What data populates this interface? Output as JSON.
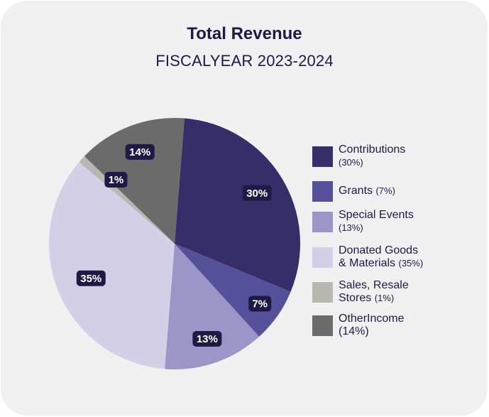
{
  "header": {
    "title": "Total Revenue",
    "subtitle": "FISCALYEAR 2023-2024"
  },
  "chart_data": {
    "type": "pie",
    "title": "Total Revenue",
    "subtitle": "FISCALYEAR 2023-2024",
    "legend_position": "right",
    "slices": [
      {
        "name": "Contributions",
        "value": 30,
        "label": "30%",
        "legend_line1": "Contributions",
        "legend_line2": "(30%)",
        "color": "#362e69"
      },
      {
        "name": "Grants",
        "value": 7,
        "label": "7%",
        "legend_line1": "Grants",
        "legend_line2": "(7%)",
        "color": "#55509a"
      },
      {
        "name": "Special Events",
        "value": 13,
        "label": "13%",
        "legend_line1": "Special Events",
        "legend_line2": "(13%)",
        "color": "#9b95c8"
      },
      {
        "name": "Donated Goods & Materials",
        "value": 35,
        "label": "35%",
        "legend_line1": "Donated Goods",
        "legend_line2": "& Materials",
        "legend_pct": "(35%)",
        "color": "#d2cfe7"
      },
      {
        "name": "Sales, Resale Stores",
        "value": 1,
        "label": "1%",
        "legend_line1": "Sales, Resale",
        "legend_line2": "Stores",
        "legend_pct": "(1%)",
        "color": "#b8b7b1"
      },
      {
        "name": "OtherIncome",
        "value": 14,
        "label": "14%",
        "legend_line1": "OtherIncome",
        "legend_line2": "(14%)",
        "color": "#6b6b6b"
      }
    ],
    "label_color": "#1f1a45"
  }
}
